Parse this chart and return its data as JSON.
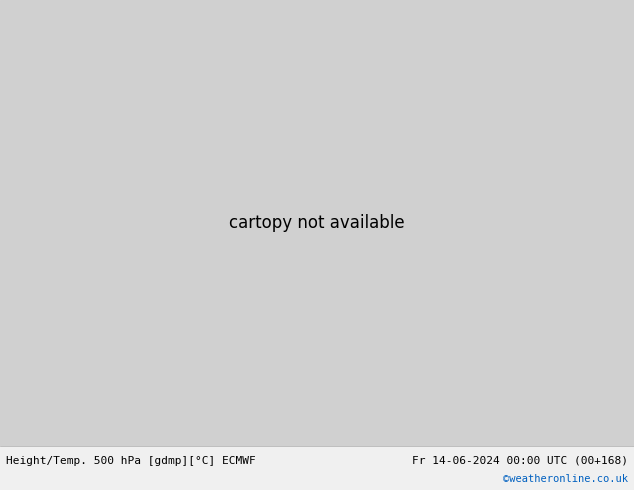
{
  "title_left": "Height/Temp. 500 hPa [gdmp][°C] ECMWF",
  "title_right": "Fr 14-06-2024 00:00 UTC (00+168)",
  "credit": "©weatheronline.co.uk",
  "bg_sea_color": "#d8d8d8",
  "bg_land_color": "#c8c8c8",
  "green_fill_color": "#c8e8a0",
  "gray_land_color": "#b8b8b8",
  "bottom_bar_color": "#f0f0f0",
  "title_color": "#000000",
  "credit_color": "#0060c0",
  "height_contour_color": "#000000",
  "orange_color": "#ff8c00",
  "red_color": "#ff0000",
  "green_temp_color": "#44bb00",
  "cyan_color": "#00cccc",
  "figsize": [
    6.34,
    4.9
  ],
  "dpi": 100
}
